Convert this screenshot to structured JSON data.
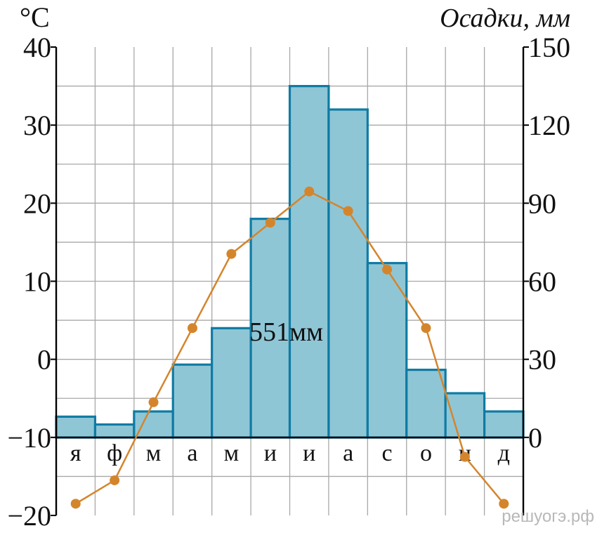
{
  "chart_data": {
    "type": "bar+line",
    "left_axis_title": "°C",
    "right_axis_title": "Осадки, мм",
    "left_ticks": [
      "40",
      "30",
      "20",
      "10",
      "0",
      "−10",
      "−20"
    ],
    "right_ticks": [
      "150",
      "120",
      "90",
      "60",
      "30",
      "0"
    ],
    "categories": [
      "я",
      "ф",
      "м",
      "а",
      "м",
      "и",
      "и",
      "а",
      "с",
      "о",
      "н",
      "д"
    ],
    "precipitation_mm": [
      8,
      5,
      10,
      28,
      42,
      84,
      135,
      126,
      67,
      26,
      17,
      10
    ],
    "temperature_c": [
      -18.5,
      -15.5,
      -5.5,
      4,
      13.5,
      17.5,
      21.5,
      19,
      11.5,
      4,
      -12.5,
      -18.5
    ],
    "ylim_left": [
      -20,
      40
    ],
    "ylim_right": [
      0,
      150
    ],
    "total_label": "551мм",
    "bar_color": "#8fc6d6",
    "bar_border_color": "#0f7ba3",
    "line_color": "#d4852c",
    "grid": true
  },
  "watermark": "решуогэ.рф"
}
